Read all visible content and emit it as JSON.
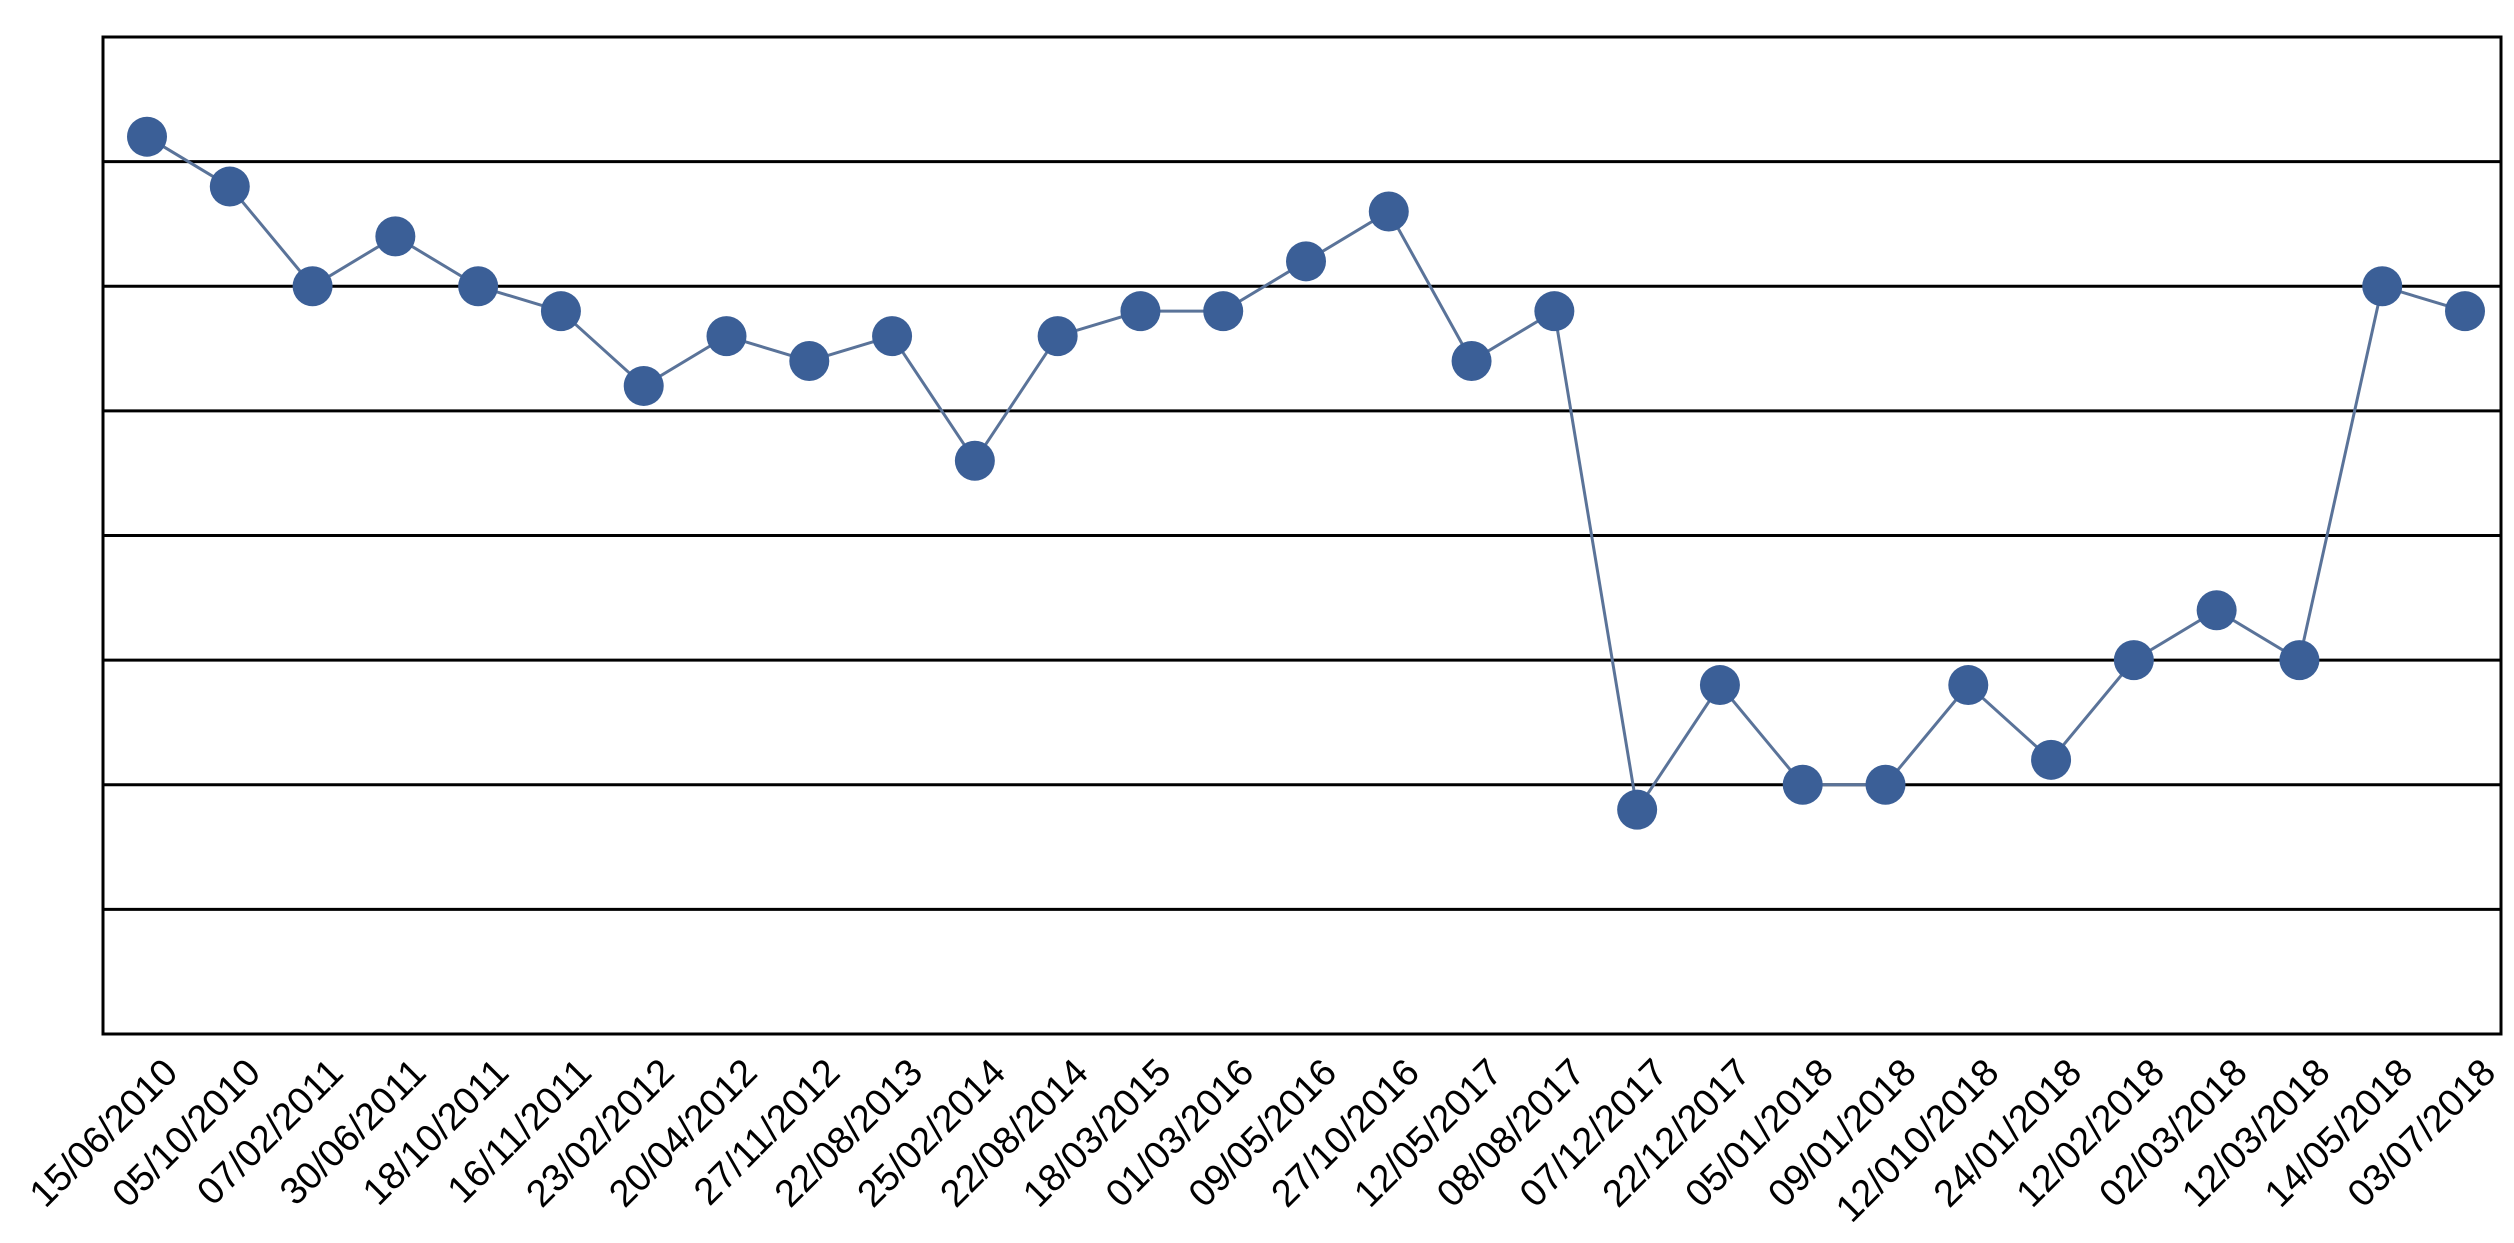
{
  "chart_data": {
    "type": "line",
    "title": "",
    "xlabel": "",
    "ylabel": "",
    "categories": [
      "15/06/2010",
      "05/10/2010",
      "07/02/2011",
      "30/06/2011",
      "18/10/2011",
      "16/11/2011",
      "23/02/2012",
      "20/04/2012",
      "27/11/2012",
      "22/08/2013",
      "25/02/2014",
      "22/08/2014",
      "18/03/2015",
      "01/03/2016",
      "09/05/2016",
      "27/10/2016",
      "12/05/2017",
      "08/08/2017",
      "07/12/2017",
      "22/12/2017",
      "05/01/2018",
      "09/01/2018",
      "12/010/2018",
      "24/01/2018",
      "12/02/2018",
      "02/03/2018",
      "12/03/2018",
      "14/05/2018",
      "03/07/2018"
    ],
    "series": [
      {
        "values": [
          7.2,
          6.8,
          6.0,
          6.4,
          6.0,
          5.8,
          5.2,
          5.6,
          5.4,
          5.6,
          4.6,
          5.6,
          5.8,
          5.8,
          6.2,
          6.6,
          5.4,
          5.8,
          1.8,
          2.8,
          2.0,
          2.0,
          2.8,
          2.2,
          3.0,
          3.4,
          3.0,
          6.0,
          5.8
        ]
      }
    ],
    "ylim": [
      0,
      8
    ],
    "y_gridlines": [
      1,
      2,
      3,
      4,
      5,
      6,
      7
    ],
    "grid": "horizontal",
    "legend": "none",
    "colors": {
      "line": "#5a7399",
      "marker": "#3b5f97",
      "grid": "#000000",
      "frame": "#000000"
    }
  }
}
